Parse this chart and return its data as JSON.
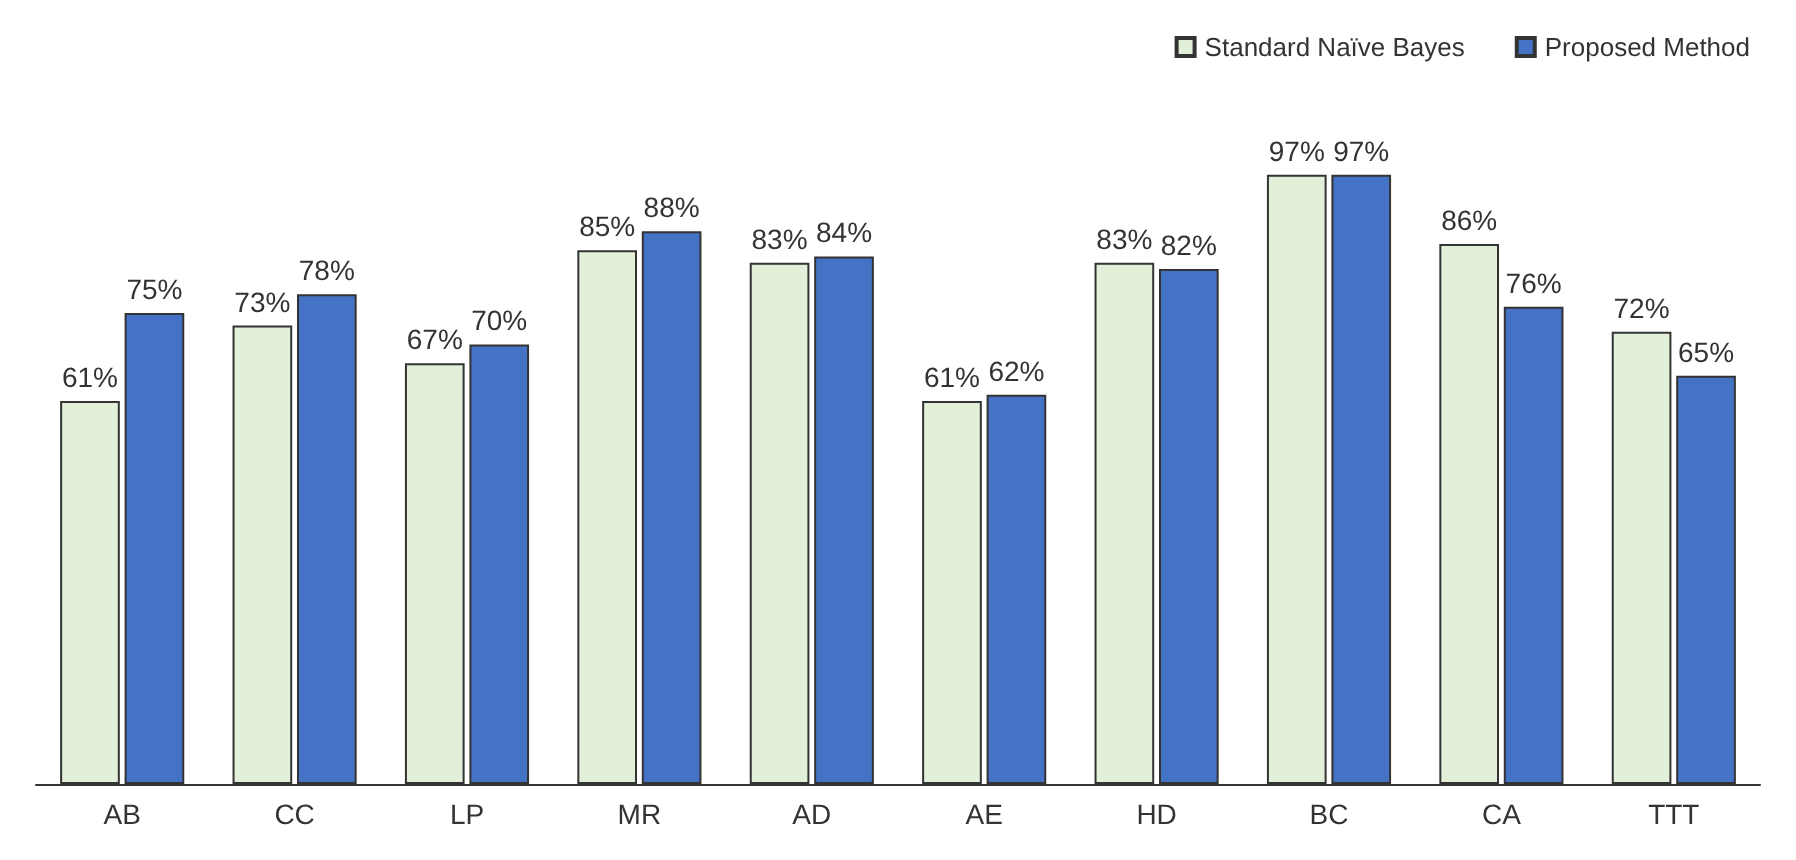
{
  "chart_data": {
    "type": "bar",
    "categories": [
      "AB",
      "CC",
      "LP",
      "MR",
      "AD",
      "AE",
      "HD",
      "BC",
      "CA",
      "TTT"
    ],
    "series": [
      {
        "name": "Standard Naïve Bayes",
        "color": "#e2efd9",
        "values": [
          61,
          73,
          67,
          85,
          83,
          61,
          83,
          97,
          86,
          72
        ],
        "value_labels": [
          "61%",
          "73%",
          "67%",
          "85%",
          "83%",
          "61%",
          "83%",
          "97%",
          "86%",
          "72%"
        ]
      },
      {
        "name": "Proposed Method",
        "color": "#4472c4",
        "values": [
          75,
          78,
          70,
          88,
          84,
          62,
          82,
          97,
          76,
          65
        ],
        "value_labels": [
          "75%",
          "78%",
          "70%",
          "88%",
          "84%",
          "62%",
          "82%",
          "97%",
          "76%",
          "65%"
        ]
      }
    ],
    "legend": "top right",
    "grid": false
  }
}
